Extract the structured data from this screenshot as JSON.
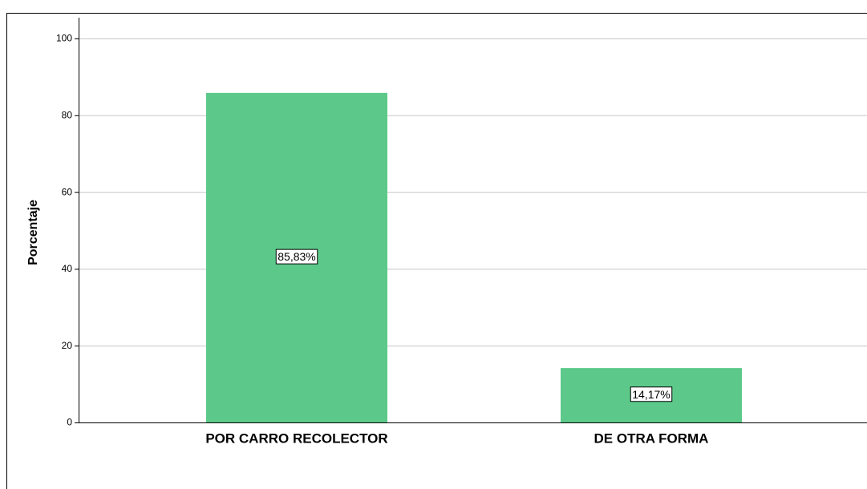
{
  "chart_data": {
    "type": "bar",
    "y_label": "Porcentaje",
    "categories": [
      "POR CARRO RECOLECTOR",
      "DE OTRA FORMA"
    ],
    "values": [
      85.83,
      14.17
    ],
    "value_labels": [
      "85,83%",
      "14,17%"
    ],
    "color": "#5cc98a",
    "ylim": [
      0,
      100
    ],
    "yticks": [
      0,
      20,
      40,
      60,
      80,
      100
    ],
    "grid": true
  }
}
